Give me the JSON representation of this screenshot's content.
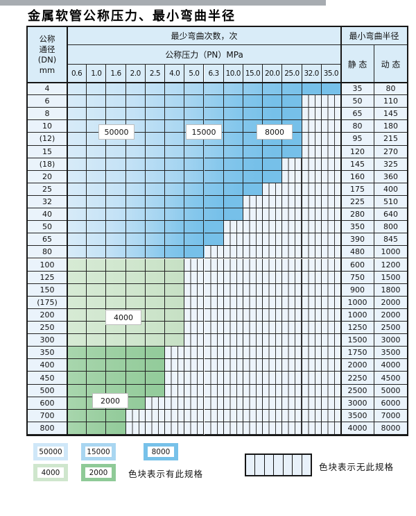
{
  "title": "金属软管公称压力、最小弯曲半径",
  "table": {
    "dn_header_lines": [
      "公称",
      "通径",
      "(DN)",
      "mm"
    ],
    "bend_times_header": "最少弯曲次数，次",
    "pn_header": "公称压力（PN）MPa",
    "radius_header": "最小弯曲半径",
    "static_header": "静 态",
    "dynamic_header": "动 态",
    "pn_columns": [
      "0.6",
      "1.0",
      "1.6",
      "2.0",
      "2.5",
      "4.0",
      "5.0",
      "6.3",
      "10.0",
      "15.0",
      "20.0",
      "25.0",
      "32.0",
      "35.0"
    ],
    "rows": [
      {
        "dn": "4",
        "static": "35",
        "dynamic": "80",
        "colored_span": 14,
        "zone": "blue"
      },
      {
        "dn": "6",
        "static": "50",
        "dynamic": "110",
        "colored_span": 12,
        "zone": "blue"
      },
      {
        "dn": "8",
        "static": "65",
        "dynamic": "145",
        "colored_span": 12,
        "zone": "blue"
      },
      {
        "dn": "10",
        "static": "80",
        "dynamic": "180",
        "colored_span": 12,
        "zone": "blue"
      },
      {
        "dn": "(12)",
        "static": "95",
        "dynamic": "215",
        "colored_span": 12,
        "zone": "blue"
      },
      {
        "dn": "15",
        "static": "120",
        "dynamic": "270",
        "colored_span": 12,
        "zone": "blue"
      },
      {
        "dn": "(18)",
        "static": "145",
        "dynamic": "325",
        "colored_span": 11,
        "zone": "blue"
      },
      {
        "dn": "20",
        "static": "160",
        "dynamic": "360",
        "colored_span": 11,
        "zone": "blue"
      },
      {
        "dn": "25",
        "static": "175",
        "dynamic": "400",
        "colored_span": 10,
        "zone": "blue"
      },
      {
        "dn": "32",
        "static": "225",
        "dynamic": "510",
        "colored_span": 9,
        "zone": "blue"
      },
      {
        "dn": "40",
        "static": "280",
        "dynamic": "640",
        "colored_span": 9,
        "zone": "blue"
      },
      {
        "dn": "50",
        "static": "350",
        "dynamic": "800",
        "colored_span": 8,
        "zone": "blue"
      },
      {
        "dn": "65",
        "static": "390",
        "dynamic": "845",
        "colored_span": 8,
        "zone": "blue"
      },
      {
        "dn": "80",
        "static": "480",
        "dynamic": "1000",
        "colored_span": 7,
        "zone": "blue"
      },
      {
        "dn": "100",
        "static": "600",
        "dynamic": "1200",
        "colored_span": 6,
        "zone": "green4000"
      },
      {
        "dn": "125",
        "static": "750",
        "dynamic": "1500",
        "colored_span": 6,
        "zone": "green4000"
      },
      {
        "dn": "150",
        "static": "900",
        "dynamic": "1800",
        "colored_span": 6,
        "zone": "green4000"
      },
      {
        "dn": "(175)",
        "static": "1000",
        "dynamic": "2000",
        "colored_span": 6,
        "zone": "green4000"
      },
      {
        "dn": "200",
        "static": "1000",
        "dynamic": "2000",
        "colored_span": 6,
        "zone": "green4000"
      },
      {
        "dn": "250",
        "static": "1250",
        "dynamic": "2500",
        "colored_span": 6,
        "zone": "green4000"
      },
      {
        "dn": "300",
        "static": "1500",
        "dynamic": "3000",
        "colored_span": 6,
        "zone": "green4000"
      },
      {
        "dn": "350",
        "static": "1750",
        "dynamic": "3500",
        "colored_span": 5,
        "zone": "green2000"
      },
      {
        "dn": "400",
        "static": "2000",
        "dynamic": "4000",
        "colored_span": 5,
        "zone": "green2000"
      },
      {
        "dn": "450",
        "static": "2250",
        "dynamic": "4500",
        "colored_span": 5,
        "zone": "green2000"
      },
      {
        "dn": "500",
        "static": "2500",
        "dynamic": "5000",
        "colored_span": 5,
        "zone": "green2000"
      },
      {
        "dn": "600",
        "static": "3000",
        "dynamic": "6000",
        "colored_span": 4,
        "zone": "green2000"
      },
      {
        "dn": "700",
        "static": "3500",
        "dynamic": "7000",
        "colored_span": 3,
        "zone": "green2000"
      },
      {
        "dn": "800",
        "static": "4000",
        "dynamic": "8000",
        "colored_span": 3,
        "zone": "green2000"
      }
    ]
  },
  "zone_labels": [
    "50000",
    "15000",
    "8000",
    "4000",
    "2000"
  ],
  "legend": {
    "items": [
      {
        "label": "50000",
        "color": "#cfe7f8"
      },
      {
        "label": "15000",
        "color": "#a9d6f1"
      },
      {
        "label": "8000",
        "color": "#77c1e9"
      },
      {
        "label": "4000",
        "color": "#cfe6cd"
      },
      {
        "label": "2000",
        "color": "#8fca97"
      }
    ],
    "has_spec_text": "色块表示有此规格",
    "no_spec_text": "色块表示无此规格"
  },
  "colors": {
    "header_bg": "#d9ecf8",
    "label_cell_bg": "#eaf3fb",
    "blue_light": "#d7ebf8",
    "blue_mid": "#a6d5f1",
    "blue_dark": "#76c0e9",
    "green_light": "#cfe6cd",
    "green_mid": "#9bcfa1",
    "nospec_bg": "#edf4fb",
    "nospec_line": "#3a3a3a",
    "top_strip": "#a7acb1"
  }
}
